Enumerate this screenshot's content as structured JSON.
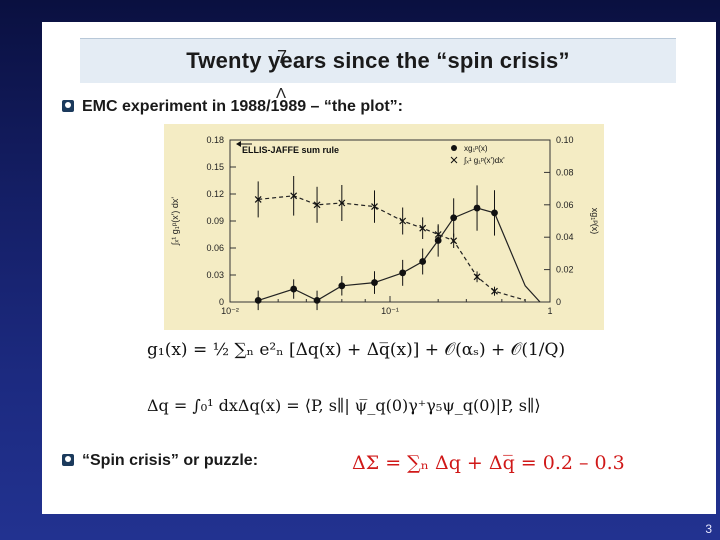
{
  "slide": {
    "title": "Twenty years since the “spin crisis”",
    "insert_mark": "7",
    "insert_caret": "Λ",
    "bullet1": "EMC experiment in 1988/1989 – “the plot”:",
    "bullet2": "“Spin crisis” or puzzle:",
    "formula_g1": "g₁(x) = ½ ∑ₙ e²ₙ [Δq(x) + Δq̅(x)] + 𝒪(αₛ) + 𝒪(1/Q)",
    "formula_dq": "Δq = ∫₀¹ dxΔq(x) = ⟨P, s∥| ψ̅_q(0)γ⁺γ₅ψ_q(0)|P, s∥⟩",
    "formula_dsigma": "ΔΣ = ∑ₙ Δq + Δq̅ = 0.2 – 0.3",
    "page_number": "3"
  },
  "chart_data": {
    "type": "scatter",
    "title": "",
    "annotation": "ELLIS-JAFFE sum rule",
    "x_scale": "log",
    "x_ticks": [
      "10⁻²",
      "10⁻¹",
      "1"
    ],
    "xlim": [
      0.01,
      1.0
    ],
    "ylabel_left": "∫ₓ¹ g₁ᵖ(x') dx'",
    "ylabel_right": "xg₁ᵖ(x)",
    "ylim_left": [
      0,
      0.18
    ],
    "ylim_right": [
      0,
      0.1
    ],
    "y_ticks_left": [
      "0",
      "0.03",
      "0.06",
      "0.09",
      "0.12",
      "0.15",
      "0.18"
    ],
    "y_ticks_right": [
      "0",
      "0.02",
      "0.04",
      "0.06",
      "0.08",
      "0.10"
    ],
    "legend_placement": "top-right",
    "series": [
      {
        "name": "xg₁ᵖ(x)",
        "marker": "dot",
        "axis": "right",
        "x": [
          0.015,
          0.025,
          0.035,
          0.05,
          0.08,
          0.12,
          0.16,
          0.2,
          0.25,
          0.35,
          0.45
        ],
        "y": [
          0.001,
          0.008,
          0.001,
          0.01,
          0.012,
          0.018,
          0.025,
          0.038,
          0.052,
          0.058,
          0.055
        ],
        "err": [
          0.006,
          0.006,
          0.006,
          0.006,
          0.007,
          0.008,
          0.008,
          0.01,
          0.012,
          0.014,
          0.014
        ]
      },
      {
        "name": "∫ₓ¹ g₁ᵖ(x')dx'",
        "marker": "cross",
        "axis": "left",
        "x": [
          0.015,
          0.025,
          0.035,
          0.05,
          0.08,
          0.12,
          0.16,
          0.2,
          0.25,
          0.35,
          0.45
        ],
        "y": [
          0.114,
          0.118,
          0.108,
          0.11,
          0.106,
          0.09,
          0.082,
          0.075,
          0.068,
          0.028,
          0.012
        ],
        "err": [
          0.02,
          0.022,
          0.02,
          0.02,
          0.018,
          0.015,
          0.012,
          0.01,
          0.008,
          0.006,
          0.005
        ]
      }
    ]
  }
}
